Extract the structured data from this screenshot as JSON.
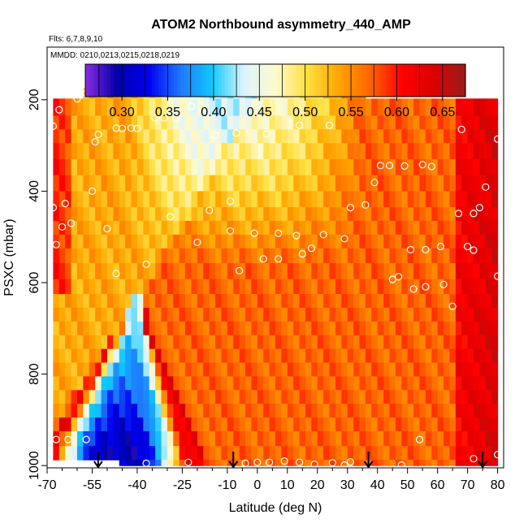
{
  "chart_data": {
    "type": "heatmap",
    "title": "ATOM2 Northbound asymmetry_440_AMP",
    "flights_note": "Flts: 6,7,8,9,10",
    "date_note": "MMDD: 0210,0213,0215,0218,0219",
    "xlabel": "Latitude (deg N)",
    "ylabel": "PSXC (mbar)",
    "xlim": [
      -70,
      82
    ],
    "ylim": [
      1005,
      85
    ],
    "y_inverted": true,
    "xticks": [
      -70,
      -55,
      -40,
      -25,
      -10,
      0,
      10,
      20,
      30,
      40,
      50,
      60,
      70,
      80
    ],
    "xtick_labels": [
      "-70",
      "-55",
      "-40",
      "-25",
      "-10",
      "0",
      "10",
      "20",
      "30",
      "40",
      "50",
      "60",
      "70",
      "80"
    ],
    "yticks": [
      200,
      400,
      600,
      800,
      1000
    ],
    "ytick_labels": [
      "200",
      "400",
      "600",
      "800",
      "1000"
    ],
    "colorbar": {
      "min": 0.26,
      "max": 0.675,
      "ticks": [
        0.3,
        0.35,
        0.4,
        0.45,
        0.5,
        0.55,
        0.6,
        0.65
      ],
      "tick_labels": [
        "0.30",
        "0.35",
        "0.40",
        "0.45",
        "0.50",
        "0.55",
        "0.60",
        "0.65"
      ],
      "colors": [
        "#8a2be2",
        "#0000a8",
        "#0000f0",
        "#1e78ff",
        "#10c8ff",
        "#dcf4ff",
        "#fffacd",
        "#ffe040",
        "#ffa500",
        "#ff6400",
        "#ff0000",
        "#dc0000",
        "#961e1e"
      ]
    },
    "pressure_levels": [
      175,
      220,
      250,
      280,
      310,
      350,
      380,
      420,
      450,
      480,
      510,
      540,
      575,
      610,
      640,
      670,
      700,
      730,
      760,
      790,
      820,
      850,
      880,
      910,
      940,
      975,
      1000
    ],
    "grid_lat_range": [
      -68,
      80
    ],
    "grid_lat_step": 2,
    "field_features": {
      "background_value": 0.57,
      "blue_wedge": {
        "apex_pressure": 640,
        "apex_lat": -40,
        "base_pressure": 960,
        "base_lat_range": [
          -63,
          -29
        ],
        "core_value": 0.3
      },
      "upper_pale_band": {
        "lat_range": [
          -43,
          35
        ],
        "pressure_range": [
          175,
          560
        ],
        "value": 0.46
      },
      "red_polar_edges": {
        "south_lat": -62,
        "north_lat": 65,
        "value": 0.64
      }
    },
    "obs_points": [
      {
        "lat": -60,
        "p": 198
      },
      {
        "lat": -57,
        "p": 186
      },
      {
        "lat": -66,
        "p": 222
      },
      {
        "lat": -68,
        "p": 258
      },
      {
        "lat": -54,
        "p": 292
      },
      {
        "lat": -53,
        "p": 276
      },
      {
        "lat": -47,
        "p": 262
      },
      {
        "lat": -45,
        "p": 263
      },
      {
        "lat": -42,
        "p": 262
      },
      {
        "lat": -40,
        "p": 263
      },
      {
        "lat": -34,
        "p": 240
      },
      {
        "lat": -31,
        "p": 240
      },
      {
        "lat": -27,
        "p": 240
      },
      {
        "lat": -22,
        "p": 215
      },
      {
        "lat": -14,
        "p": 278
      },
      {
        "lat": -7,
        "p": 273
      },
      {
        "lat": 3,
        "p": 275
      },
      {
        "lat": 14,
        "p": 256
      },
      {
        "lat": 24,
        "p": 256
      },
      {
        "lat": 41,
        "p": 344
      },
      {
        "lat": 44,
        "p": 344
      },
      {
        "lat": 49,
        "p": 345
      },
      {
        "lat": 55,
        "p": 342
      },
      {
        "lat": 58,
        "p": 346
      },
      {
        "lat": 68,
        "p": 265
      },
      {
        "lat": 80,
        "p": 286
      },
      {
        "lat": -55,
        "p": 400
      },
      {
        "lat": -64,
        "p": 427
      },
      {
        "lat": -68,
        "p": 436
      },
      {
        "lat": -62,
        "p": 470
      },
      {
        "lat": -65,
        "p": 478
      },
      {
        "lat": -67,
        "p": 517
      },
      {
        "lat": -50,
        "p": 482
      },
      {
        "lat": -29,
        "p": 456
      },
      {
        "lat": -16,
        "p": 442
      },
      {
        "lat": -9,
        "p": 422
      },
      {
        "lat": -9,
        "p": 487
      },
      {
        "lat": -1,
        "p": 492
      },
      {
        "lat": 7,
        "p": 492
      },
      {
        "lat": 13,
        "p": 497
      },
      {
        "lat": 22,
        "p": 495
      },
      {
        "lat": 31,
        "p": 436
      },
      {
        "lat": 36,
        "p": 430
      },
      {
        "lat": 39,
        "p": 381
      },
      {
        "lat": 29,
        "p": 504
      },
      {
        "lat": 18,
        "p": 525
      },
      {
        "lat": 15,
        "p": 537
      },
      {
        "lat": 7,
        "p": 548
      },
      {
        "lat": 2,
        "p": 548
      },
      {
        "lat": -6,
        "p": 574
      },
      {
        "lat": -20,
        "p": 512
      },
      {
        "lat": -37,
        "p": 560
      },
      {
        "lat": -47,
        "p": 580
      },
      {
        "lat": 51,
        "p": 528
      },
      {
        "lat": 56,
        "p": 528
      },
      {
        "lat": 61,
        "p": 521
      },
      {
        "lat": 67,
        "p": 449
      },
      {
        "lat": 72,
        "p": 449
      },
      {
        "lat": 74,
        "p": 436
      },
      {
        "lat": 76,
        "p": 391
      },
      {
        "lat": 70,
        "p": 521
      },
      {
        "lat": 72,
        "p": 529
      },
      {
        "lat": 45,
        "p": 593
      },
      {
        "lat": 47,
        "p": 587
      },
      {
        "lat": 52,
        "p": 614
      },
      {
        "lat": 56,
        "p": 609
      },
      {
        "lat": 62,
        "p": 604
      },
      {
        "lat": 65,
        "p": 652
      },
      {
        "lat": 80,
        "p": 586
      },
      {
        "lat": -63,
        "p": 943
      },
      {
        "lat": -57,
        "p": 943
      },
      {
        "lat": -67,
        "p": 943
      },
      {
        "lat": 54,
        "p": 943
      },
      {
        "lat": -23,
        "p": 993
      },
      {
        "lat": -37,
        "p": 995
      },
      {
        "lat": -4,
        "p": 995
      },
      {
        "lat": 0,
        "p": 993
      },
      {
        "lat": 4,
        "p": 993
      },
      {
        "lat": 9,
        "p": 990
      },
      {
        "lat": 14,
        "p": 993
      },
      {
        "lat": 19,
        "p": 997
      },
      {
        "lat": 25,
        "p": 994
      },
      {
        "lat": 29,
        "p": 999
      },
      {
        "lat": 31,
        "p": 992
      },
      {
        "lat": 48,
        "p": 999
      },
      {
        "lat": 72,
        "p": 985
      },
      {
        "lat": 80,
        "p": 976
      }
    ],
    "flight_arrows_lat": [
      -53,
      -8,
      37,
      75
    ]
  }
}
